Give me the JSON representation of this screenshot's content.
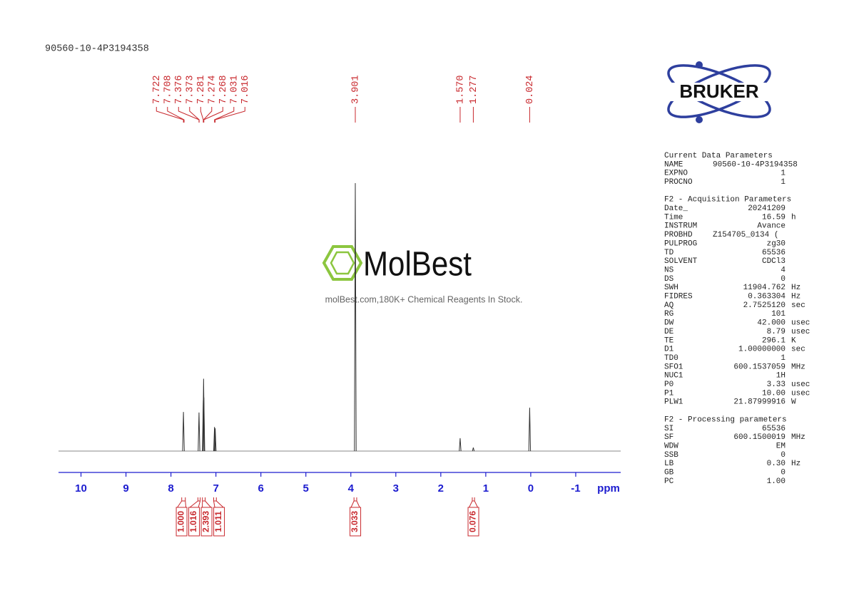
{
  "header": {
    "sample": "90560-10-4P3194358"
  },
  "logo": {
    "brand": "BRUKER"
  },
  "watermark": {
    "name": "MolBest",
    "tagline": "molBest.com,180K+ Chemical Reagents In Stock."
  },
  "chart_data": {
    "type": "nmr",
    "xlabel": "ppm",
    "xlim": [
      10.5,
      -2.0
    ],
    "xticks": [
      10,
      9,
      8,
      7,
      6,
      5,
      4,
      3,
      2,
      1,
      0,
      -1
    ],
    "ylim": [
      0,
      100
    ],
    "x": [
      7.722,
      7.376,
      7.281,
      7.274,
      7.268,
      7.031,
      7.016,
      3.901,
      1.57,
      1.277,
      0.024
    ],
    "values": [
      14.6,
      14.4,
      19,
      27,
      20,
      9,
      8.5,
      100,
      4.8,
      1.3,
      16.2
    ],
    "peak_labels": [
      7.722,
      7.708,
      7.376,
      7.373,
      7.281,
      7.274,
      7.268,
      7.031,
      7.016,
      3.901,
      {
        "value": 1.57,
        "label": "1.570"
      },
      1.277,
      0.024
    ],
    "integrals": [
      {
        "value": 1.0,
        "label": "1.000",
        "from": 7.76,
        "to": 7.68
      },
      {
        "value": 1.016,
        "label": "1.016",
        "from": 7.4,
        "to": 7.35
      },
      {
        "value": 2.393,
        "label": "2.393",
        "from": 7.3,
        "to": 7.24
      },
      {
        "value": 1.011,
        "label": "1.011",
        "from": 7.05,
        "to": 6.99
      },
      {
        "value": 3.033,
        "label": "3.033",
        "from": 3.93,
        "to": 3.87
      },
      {
        "value": 0.076,
        "label": "0.076",
        "from": 1.3,
        "to": 1.25
      }
    ]
  },
  "parameters": [
    {
      "title": "Current Data Parameters",
      "rows": [
        {
          "key": "NAME",
          "value": "90560-10-4P3194358"
        },
        {
          "key": "EXPNO",
          "value": "1"
        },
        {
          "key": "PROCNO",
          "value": "1"
        }
      ]
    },
    {
      "title": "F2 - Acquisition Parameters",
      "rows": [
        {
          "key": "Date_",
          "value": "20241209"
        },
        {
          "key": "Time",
          "value": "16.59",
          "unit": "h"
        },
        {
          "key": "INSTRUM",
          "value": "Avance"
        },
        {
          "key": "PROBHD",
          "value": "Z154705_0134 ("
        },
        {
          "key": "PULPROG",
          "value": "zg30"
        },
        {
          "key": "TD",
          "value": "65536"
        },
        {
          "key": "SOLVENT",
          "value": "CDCl3"
        },
        {
          "key": "NS",
          "value": "4"
        },
        {
          "key": "DS",
          "value": "0"
        },
        {
          "key": "SWH",
          "value": "11904.762",
          "unit": "Hz"
        },
        {
          "key": "FIDRES",
          "value": "0.363304",
          "unit": "Hz"
        },
        {
          "key": "AQ",
          "value": "2.7525120",
          "unit": "sec"
        },
        {
          "key": "RG",
          "value": "101"
        },
        {
          "key": "DW",
          "value": "42.000",
          "unit": "usec"
        },
        {
          "key": "DE",
          "value": "8.79",
          "unit": "usec"
        },
        {
          "key": "TE",
          "value": "296.1",
          "unit": "K"
        },
        {
          "key": "D1",
          "value": "1.00000000",
          "unit": "sec"
        },
        {
          "key": "TD0",
          "value": "1"
        },
        {
          "key": "SFO1",
          "value": "600.1537059",
          "unit": "MHz"
        },
        {
          "key": "NUC1",
          "value": "1H"
        },
        {
          "key": "P0",
          "value": "3.33",
          "unit": "usec"
        },
        {
          "key": "P1",
          "value": "10.00",
          "unit": "usec"
        },
        {
          "key": "PLW1",
          "value": "21.87999916",
          "unit": "W"
        }
      ]
    },
    {
      "title": "F2 - Processing parameters",
      "rows": [
        {
          "key": "SI",
          "value": "65536"
        },
        {
          "key": "SF",
          "value": "600.1500019",
          "unit": "MHz"
        },
        {
          "key": "WDW",
          "value": "EM"
        },
        {
          "key": "SSB",
          "value": "0"
        },
        {
          "key": "LB",
          "value": "0.30",
          "unit": "Hz"
        },
        {
          "key": "GB",
          "value": "0"
        },
        {
          "key": "PC",
          "value": "1.00"
        }
      ]
    }
  ]
}
